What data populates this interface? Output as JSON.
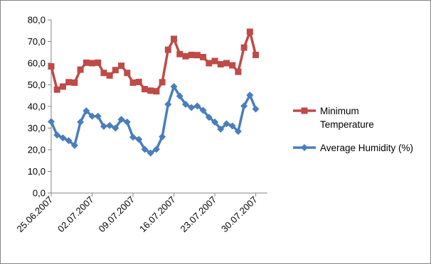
{
  "chart_data": {
    "type": "line",
    "title": "",
    "xlabel": "",
    "ylabel": "",
    "ylim": [
      0,
      80
    ],
    "y_ticks": [
      "0,0",
      "10,0",
      "20,0",
      "30,0",
      "40,0",
      "50,0",
      "60,0",
      "70,0",
      "80,0"
    ],
    "x_tick_labels": [
      "25.06.2007",
      "02.07.2007",
      "09.07.2007",
      "16.07.2007",
      "23.07.2007",
      "30.07.2007"
    ],
    "x_start": "2007-06-25",
    "x_end": "2007-08-01",
    "grid": false,
    "legend_position": "right",
    "series": [
      {
        "name": "Minimum Temperature",
        "color": "#BE4B48",
        "marker": "square",
        "points": [
          [
            "2007-06-25",
            58.5
          ],
          [
            "2007-06-26",
            47.8
          ],
          [
            "2007-06-27",
            49.2
          ],
          [
            "2007-06-28",
            51.2
          ],
          [
            "2007-06-29",
            51.0
          ],
          [
            "2007-06-30",
            57.0
          ],
          [
            "2007-07-01",
            60.2
          ],
          [
            "2007-07-02",
            60.0
          ],
          [
            "2007-07-03",
            60.2
          ],
          [
            "2007-07-04",
            55.5
          ],
          [
            "2007-07-05",
            54.3
          ],
          [
            "2007-07-06",
            56.8
          ],
          [
            "2007-07-07",
            58.8
          ],
          [
            "2007-07-08",
            55.5
          ],
          [
            "2007-07-09",
            51.0
          ],
          [
            "2007-07-10",
            51.3
          ],
          [
            "2007-07-11",
            48.0
          ],
          [
            "2007-07-12",
            47.3
          ],
          [
            "2007-07-13",
            47.0
          ],
          [
            "2007-07-14",
            51.2
          ],
          [
            "2007-07-15",
            66.2
          ],
          [
            "2007-07-16",
            71.2
          ],
          [
            "2007-07-17",
            64.2
          ],
          [
            "2007-07-18",
            63.2
          ],
          [
            "2007-07-19",
            63.8
          ],
          [
            "2007-07-20",
            63.7
          ],
          [
            "2007-07-21",
            62.8
          ],
          [
            "2007-07-22",
            60.0
          ],
          [
            "2007-07-23",
            61.0
          ],
          [
            "2007-07-24",
            59.5
          ],
          [
            "2007-07-25",
            60.0
          ],
          [
            "2007-07-26",
            59.0
          ],
          [
            "2007-07-27",
            56.0
          ],
          [
            "2007-07-28",
            67.2
          ],
          [
            "2007-07-29",
            74.5
          ],
          [
            "2007-07-30",
            63.8
          ]
        ]
      },
      {
        "name": "Average Humidity (%)",
        "color": "#4A7EBB",
        "marker": "diamond",
        "points": [
          [
            "2007-06-25",
            33.0
          ],
          [
            "2007-06-26",
            26.8
          ],
          [
            "2007-06-27",
            25.5
          ],
          [
            "2007-06-28",
            24.2
          ],
          [
            "2007-06-29",
            22.0
          ],
          [
            "2007-06-30",
            32.8
          ],
          [
            "2007-07-01",
            38.0
          ],
          [
            "2007-07-02",
            35.5
          ],
          [
            "2007-07-03",
            35.5
          ],
          [
            "2007-07-04",
            30.8
          ],
          [
            "2007-07-05",
            31.2
          ],
          [
            "2007-07-06",
            30.0
          ],
          [
            "2007-07-07",
            34.0
          ],
          [
            "2007-07-08",
            32.8
          ],
          [
            "2007-07-09",
            25.8
          ],
          [
            "2007-07-10",
            24.8
          ],
          [
            "2007-07-11",
            20.2
          ],
          [
            "2007-07-12",
            18.5
          ],
          [
            "2007-07-13",
            20.2
          ],
          [
            "2007-07-14",
            26.0
          ],
          [
            "2007-07-15",
            41.0
          ],
          [
            "2007-07-16",
            49.2
          ],
          [
            "2007-07-17",
            44.8
          ],
          [
            "2007-07-18",
            41.0
          ],
          [
            "2007-07-19",
            39.5
          ],
          [
            "2007-07-20",
            40.2
          ],
          [
            "2007-07-21",
            38.2
          ],
          [
            "2007-07-22",
            35.0
          ],
          [
            "2007-07-23",
            32.8
          ],
          [
            "2007-07-24",
            29.5
          ],
          [
            "2007-07-25",
            32.0
          ],
          [
            "2007-07-26",
            31.0
          ],
          [
            "2007-07-27",
            28.5
          ],
          [
            "2007-07-28",
            40.2
          ],
          [
            "2007-07-29",
            45.2
          ],
          [
            "2007-07-30",
            38.8
          ]
        ]
      }
    ],
    "legend": [
      {
        "lines": [
          "Minimum",
          "Temperature"
        ],
        "color": "#BE4B48",
        "marker": "square"
      },
      {
        "lines": [
          "Average Humidity (%)"
        ],
        "color": "#4A7EBB",
        "marker": "diamond"
      }
    ],
    "axis_color": "#868686"
  }
}
